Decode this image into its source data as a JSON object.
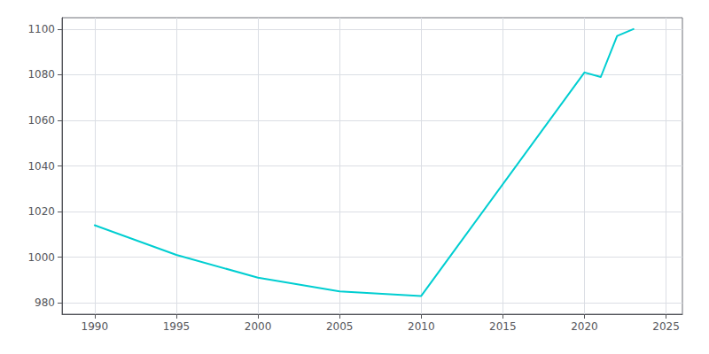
{
  "chart_data": {
    "type": "line",
    "x": [
      1990,
      1995,
      2000,
      2005,
      2010,
      2020,
      2021,
      2022,
      2023
    ],
    "values": [
      1014,
      1001,
      991,
      985,
      983,
      1081,
      1079,
      1097,
      1100
    ],
    "color": "#00CED1",
    "xlim": [
      1988,
      2026
    ],
    "ylim": [
      975,
      1105
    ],
    "xticks": [
      1990,
      1995,
      2000,
      2005,
      2010,
      2015,
      2020,
      2025
    ],
    "yticks": [
      980,
      1000,
      1020,
      1040,
      1060,
      1080,
      1100
    ],
    "grid": true
  }
}
